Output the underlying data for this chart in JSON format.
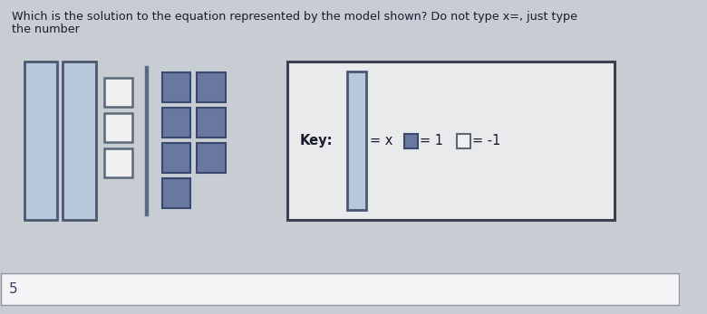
{
  "title_line1": "Which is the solution to the equation represented by the model shown? Do not type x=, just type",
  "title_line2": "the number",
  "bg_color": "#c8cdd4",
  "answer": "5",
  "x_tile_color": "#b8c8dc",
  "x_tile_border": "#4a5870",
  "neg_tile_color": "#f0f0f0",
  "neg_tile_border": "#5a6878",
  "pos_tile_color": "#6878a0",
  "pos_tile_border": "#3a4870",
  "key_bg": "#e8eaec",
  "key_border": "#3a4050",
  "div_color": "#5a6a80",
  "ans_box_bg": "#f4f4f6",
  "ans_box_border": "#9090a0",
  "ans_color": "#3a4060"
}
